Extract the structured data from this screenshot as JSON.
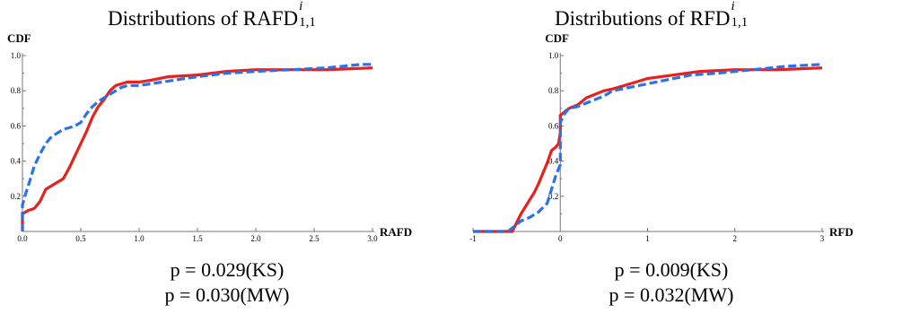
{
  "chart_data": [
    {
      "type": "line",
      "title": "Distributions of RAFD",
      "title_superscript": "i",
      "title_subscript": "1,1",
      "xlabel": "RAFD",
      "ylabel": "CDF",
      "xlim": [
        0,
        3.0
      ],
      "ylim": [
        0,
        1.0
      ],
      "x_ticks": [
        "0.0",
        "0.5",
        "1.0",
        "1.5",
        "2.0",
        "2.5",
        "3.0"
      ],
      "y_ticks": [
        "0.2",
        "0.4",
        "0.6",
        "0.8",
        "1.0"
      ],
      "grid": false,
      "stats": [
        "p = 0.029(KS)",
        "p = 0.030(MW)"
      ],
      "series": [
        {
          "style": "solid",
          "color": "#e8201e",
          "x": [
            0.0,
            0.0,
            0.05,
            0.1,
            0.15,
            0.2,
            0.25,
            0.3,
            0.35,
            0.4,
            0.45,
            0.5,
            0.55,
            0.6,
            0.65,
            0.7,
            0.75,
            0.8,
            0.85,
            0.9,
            0.95,
            1.0,
            1.1,
            1.25,
            1.5,
            1.75,
            2.0,
            2.3,
            2.6,
            3.0
          ],
          "y": [
            0.0,
            0.1,
            0.12,
            0.13,
            0.17,
            0.24,
            0.26,
            0.28,
            0.3,
            0.36,
            0.43,
            0.5,
            0.57,
            0.65,
            0.71,
            0.75,
            0.8,
            0.83,
            0.84,
            0.85,
            0.85,
            0.85,
            0.86,
            0.88,
            0.89,
            0.91,
            0.92,
            0.92,
            0.92,
            0.93
          ]
        },
        {
          "style": "dashed",
          "color": "#2a72e8",
          "x": [
            0.0,
            0.0,
            0.03,
            0.06,
            0.1,
            0.15,
            0.2,
            0.25,
            0.3,
            0.35,
            0.4,
            0.45,
            0.5,
            0.55,
            0.6,
            0.65,
            0.7,
            0.75,
            0.8,
            0.85,
            0.9,
            1.0,
            1.1,
            1.3,
            1.5,
            1.75,
            2.0,
            2.3,
            2.6,
            2.9,
            3.0
          ],
          "y": [
            0.0,
            0.15,
            0.22,
            0.28,
            0.37,
            0.44,
            0.5,
            0.54,
            0.56,
            0.58,
            0.59,
            0.6,
            0.62,
            0.67,
            0.71,
            0.74,
            0.76,
            0.78,
            0.8,
            0.82,
            0.83,
            0.83,
            0.84,
            0.86,
            0.88,
            0.9,
            0.91,
            0.92,
            0.93,
            0.95,
            0.95
          ]
        }
      ]
    },
    {
      "type": "line",
      "title": "Distributions of RFD",
      "title_superscript": "i",
      "title_subscript": "1,1",
      "xlabel": "RFD",
      "ylabel": "CDF",
      "xlim": [
        -1,
        3
      ],
      "ylim": [
        0,
        1.0
      ],
      "x_ticks": [
        "-1",
        "1",
        "2",
        "3"
      ],
      "y_ticks": [
        "0.2",
        "0.4",
        "0.6",
        "0.8",
        "1.0"
      ],
      "grid": false,
      "stats": [
        "p = 0.009(KS)",
        "p = 0.032(MW)"
      ],
      "series": [
        {
          "style": "solid",
          "color": "#e8201e",
          "x": [
            -1.0,
            -0.55,
            -0.5,
            -0.45,
            -0.4,
            -0.35,
            -0.3,
            -0.25,
            -0.2,
            -0.15,
            -0.1,
            -0.05,
            -0.02,
            0.0,
            0.0,
            0.05,
            0.1,
            0.2,
            0.3,
            0.4,
            0.5,
            0.6,
            0.8,
            1.0,
            1.3,
            1.6,
            2.0,
            2.5,
            3.0
          ],
          "y": [
            0.0,
            0.0,
            0.05,
            0.1,
            0.14,
            0.18,
            0.22,
            0.27,
            0.33,
            0.39,
            0.46,
            0.48,
            0.5,
            0.56,
            0.66,
            0.68,
            0.7,
            0.72,
            0.76,
            0.78,
            0.8,
            0.81,
            0.84,
            0.87,
            0.89,
            0.91,
            0.92,
            0.92,
            0.93
          ]
        },
        {
          "style": "dashed",
          "color": "#2a72e8",
          "x": [
            -1.0,
            -0.6,
            -0.55,
            -0.45,
            -0.35,
            -0.25,
            -0.15,
            -0.1,
            -0.05,
            0.0,
            0.0,
            0.05,
            0.1,
            0.2,
            0.3,
            0.4,
            0.5,
            0.6,
            0.8,
            1.0,
            1.2,
            1.5,
            1.8,
            2.2,
            2.6,
            3.0
          ],
          "y": [
            0.0,
            0.0,
            0.02,
            0.06,
            0.08,
            0.11,
            0.16,
            0.24,
            0.32,
            0.38,
            0.62,
            0.67,
            0.7,
            0.71,
            0.73,
            0.75,
            0.77,
            0.8,
            0.82,
            0.84,
            0.86,
            0.89,
            0.9,
            0.92,
            0.94,
            0.95
          ]
        }
      ]
    }
  ]
}
